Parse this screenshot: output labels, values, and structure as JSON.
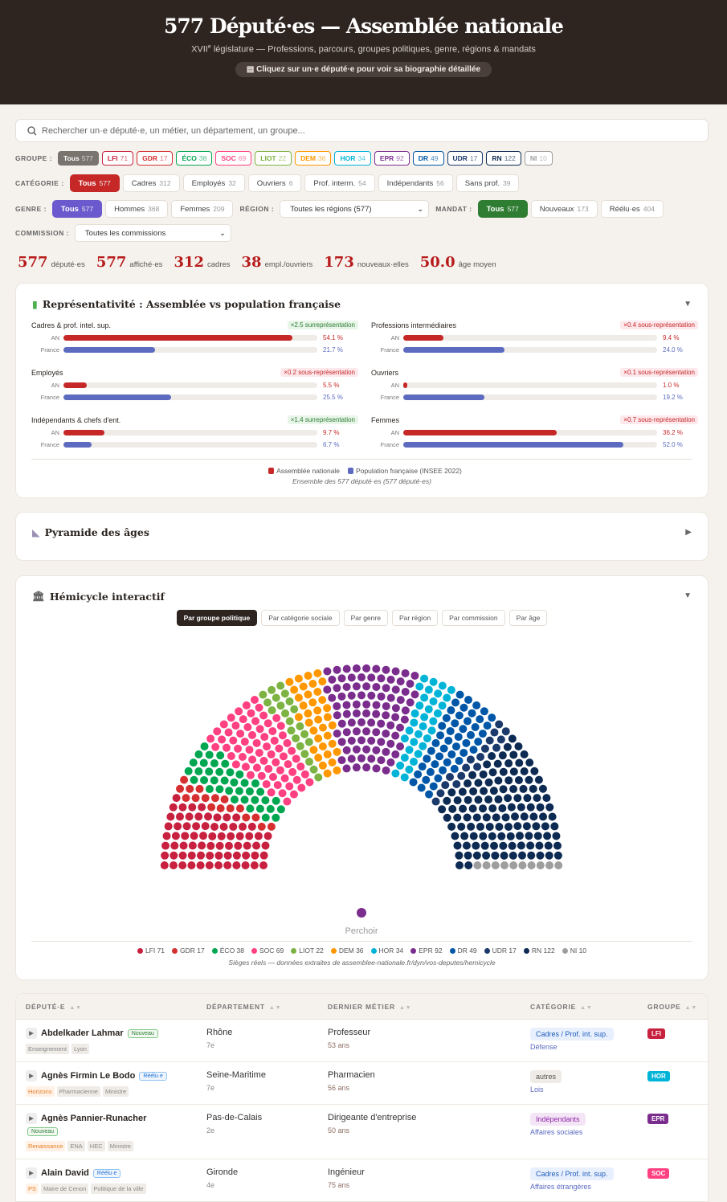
{
  "header": {
    "title": "577 Député·es — Assemblée nationale",
    "subtitle_sup_base": "XVII",
    "subtitle_sup": "e",
    "subtitle_rest": " législature — Professions, parcours, groupes politiques, genre, régions & mandats",
    "hint": "Cliquez sur un·e député·e pour voir sa biographie détaillée"
  },
  "search": {
    "placeholder": "Rechercher un·e député·e, un métier, un département, un groupe..."
  },
  "filters": {
    "groupe_label": "GROUPE :",
    "groups": [
      {
        "label": "Tous",
        "n": "577",
        "color": "#7a746e"
      },
      {
        "label": "LFI",
        "n": "71",
        "color": "#c8203f"
      },
      {
        "label": "GDR",
        "n": "17",
        "color": "#d62f2f"
      },
      {
        "label": "ÉCO",
        "n": "38",
        "color": "#00a650"
      },
      {
        "label": "SOC",
        "n": "69",
        "color": "#ff4081"
      },
      {
        "label": "LIOT",
        "n": "22",
        "color": "#7cb342"
      },
      {
        "label": "DEM",
        "n": "36",
        "color": "#ff9800"
      },
      {
        "label": "HOR",
        "n": "34",
        "color": "#00b4d8"
      },
      {
        "label": "EPR",
        "n": "92",
        "color": "#7b2d8e"
      },
      {
        "label": "DR",
        "n": "49",
        "color": "#0057a8"
      },
      {
        "label": "UDR",
        "n": "17",
        "color": "#1b3a6b"
      },
      {
        "label": "RN",
        "n": "122",
        "color": "#0c2a52"
      },
      {
        "label": "NI",
        "n": "10",
        "color": "#9e9e9e"
      }
    ],
    "categorie_label": "CATÉGORIE :",
    "categories": [
      {
        "label": "Tous",
        "n": "577"
      },
      {
        "label": "Cadres",
        "n": "312"
      },
      {
        "label": "Employés",
        "n": "32"
      },
      {
        "label": "Ouvriers",
        "n": "6"
      },
      {
        "label": "Prof. interm.",
        "n": "54"
      },
      {
        "label": "Indépendants",
        "n": "56"
      },
      {
        "label": "Sans prof.",
        "n": "39"
      }
    ],
    "genre_label": "GENRE :",
    "genres": [
      {
        "label": "Tous",
        "n": "577"
      },
      {
        "label": "Hommes",
        "n": "368"
      },
      {
        "label": "Femmes",
        "n": "209"
      }
    ],
    "region_label": "RÉGION :",
    "region_value": "Toutes les régions (577)",
    "mandat_label": "MANDAT :",
    "mandats": [
      {
        "label": "Tous",
        "n": "577"
      },
      {
        "label": "Nouveaux",
        "n": "173"
      },
      {
        "label": "Réélu·es",
        "n": "404"
      }
    ],
    "commission_label": "COMMISSION :",
    "commission_value": "Toutes les commissions"
  },
  "stats": [
    {
      "v": "577",
      "l": "député·es"
    },
    {
      "v": "577",
      "l": "affiché·es"
    },
    {
      "v": "312",
      "l": "cadres"
    },
    {
      "v": "38",
      "l": "empl./ouvriers"
    },
    {
      "v": "173",
      "l": "nouveaux·elles"
    },
    {
      "v": "50.0",
      "l": "âge moyen"
    }
  ],
  "colors": {
    "an": "#c62828",
    "france": "#5c6bc0",
    "cat": "#7a746e",
    "genre": "#6a5acd",
    "mandat": "#2e7d32"
  },
  "representativite": {
    "title": "Représentativité : Assemblée vs population française",
    "an_label": "AN",
    "fr_label": "France",
    "items": [
      {
        "label": "Cadres & prof. intel. sup.",
        "badge": "×2.5 surreprésentation",
        "dir": "up",
        "an": 54.1,
        "fr": 21.7,
        "an_t": "54.1 %",
        "fr_t": "21.7 %"
      },
      {
        "label": "Professions intermédiaires",
        "badge": "×0.4 sous-représentation",
        "dir": "down",
        "an": 9.4,
        "fr": 24.0,
        "an_t": "9.4 %",
        "fr_t": "24.0 %"
      },
      {
        "label": "Employés",
        "badge": "×0.2 sous-représentation",
        "dir": "down",
        "an": 5.5,
        "fr": 25.5,
        "an_t": "5.5 %",
        "fr_t": "25.5 %"
      },
      {
        "label": "Ouvriers",
        "badge": "×0.1 sous-représentation",
        "dir": "down",
        "an": 1.0,
        "fr": 19.2,
        "an_t": "1.0 %",
        "fr_t": "19.2 %"
      },
      {
        "label": "Indépendants & chefs d'ent.",
        "badge": "×1.4 surreprésentation",
        "dir": "up",
        "an": 9.7,
        "fr": 6.7,
        "an_t": "9.7 %",
        "fr_t": "6.7 %"
      },
      {
        "label": "Femmes",
        "badge": "×0.7 sous-représentation",
        "dir": "down",
        "an": 36.2,
        "fr": 52.0,
        "an_t": "36.2 %",
        "fr_t": "52.0 %"
      }
    ],
    "legend_an": "Assemblée nationale",
    "legend_fr": "Population française (INSEE 2022)",
    "note": "Ensemble des 577 député·es (577 député·es)"
  },
  "pyramide": {
    "title": "Pyramide des âges"
  },
  "hemicycle": {
    "title": "Hémicycle interactif",
    "tabs": [
      "Par groupe politique",
      "Par catégorie sociale",
      "Par genre",
      "Par région",
      "Par commission",
      "Par âge"
    ],
    "perchoir": "Perchoir",
    "perchoir_color": "#7b2d8e",
    "note": "Sièges réels — données extraites de assemblee-nationale.fr/dyn/vos-deputes/hemicycle",
    "order": [
      "LFI",
      "GDR",
      "ECO",
      "SOC",
      "LIOT",
      "DEM",
      "EPR",
      "HOR",
      "DR",
      "UDR",
      "RN",
      "NI"
    ],
    "seats": {
      "LFI": 71,
      "GDR": 17,
      "ECO": 38,
      "SOC": 69,
      "LIOT": 22,
      "DEM": 36,
      "EPR": 92,
      "HOR": 34,
      "DR": 49,
      "UDR": 17,
      "RN": 122,
      "NI": 10
    },
    "gcolors": {
      "LFI": "#c8203f",
      "GDR": "#d62f2f",
      "ECO": "#00a650",
      "SOC": "#ff4081",
      "LIOT": "#7cb342",
      "DEM": "#ff9800",
      "EPR": "#7b2d8e",
      "HOR": "#00b4d8",
      "DR": "#0057a8",
      "UDR": "#1b3a6b",
      "RN": "#0c2a52",
      "NI": "#9e9e9e"
    },
    "legend": [
      "LFI 71",
      "GDR 17",
      "ÉCO 38",
      "SOC 69",
      "LIOT 22",
      "DEM 36",
      "HOR 34",
      "EPR 92",
      "DR 49",
      "UDR 17",
      "RN 122",
      "NI 10"
    ],
    "legend_keys": [
      "LFI",
      "GDR",
      "ECO",
      "SOC",
      "LIOT",
      "DEM",
      "HOR",
      "EPR",
      "DR",
      "UDR",
      "RN",
      "NI"
    ]
  },
  "table": {
    "headers": [
      "DÉPUTÉ·E",
      "DÉPARTEMENT",
      "DERNIER MÉTIER",
      "CATÉGORIE",
      "GROUPE"
    ],
    "rows": [
      {
        "name": "Abdelkader Lahmar",
        "status": "Nouveau",
        "st": "new",
        "tags": [
          "Enseignement",
          "Lyon"
        ],
        "party": "",
        "dept": "Rhône",
        "circ": "7e",
        "job": "Professeur",
        "age": "53 ans",
        "cat": "Cadres / Prof. int. sup.",
        "catc": "blue",
        "com": "Défense",
        "group": "LFI",
        "gc": "#c8203f"
      },
      {
        "name": "Agnès Firmin Le Bodo",
        "status": "Réélu·e",
        "st": "re",
        "tags": [
          "Pharmacienne",
          "Ministre"
        ],
        "party": "Horizons",
        "dept": "Seine-Maritime",
        "circ": "7e",
        "job": "Pharmacien",
        "age": "56 ans",
        "cat": "autres",
        "catc": "grey",
        "com": "Lois",
        "group": "HOR",
        "gc": "#00b4d8"
      },
      {
        "name": "Agnès Pannier-Runacher",
        "status": "Nouveau",
        "st": "new",
        "tags": [
          "ENA",
          "HEC",
          "Ministre"
        ],
        "party": "Renaissance",
        "dept": "Pas-de-Calais",
        "circ": "2e",
        "job": "Dirigeante d'entreprise",
        "age": "50 ans",
        "cat": "Indépendants",
        "catc": "purple",
        "com": "Affaires sociales",
        "group": "EPR",
        "gc": "#7b2d8e"
      },
      {
        "name": "Alain David",
        "status": "Réélu·e",
        "st": "re",
        "tags": [
          "Maire de Cenon",
          "Politique de la ville"
        ],
        "party": "PS",
        "dept": "Gironde",
        "circ": "4e",
        "job": "Ingénieur",
        "age": "75 ans",
        "cat": "Cadres / Prof. int. sup.",
        "catc": "blue",
        "com": "Affaires étrangères",
        "group": "SOC",
        "gc": "#ff4081"
      }
    ]
  }
}
